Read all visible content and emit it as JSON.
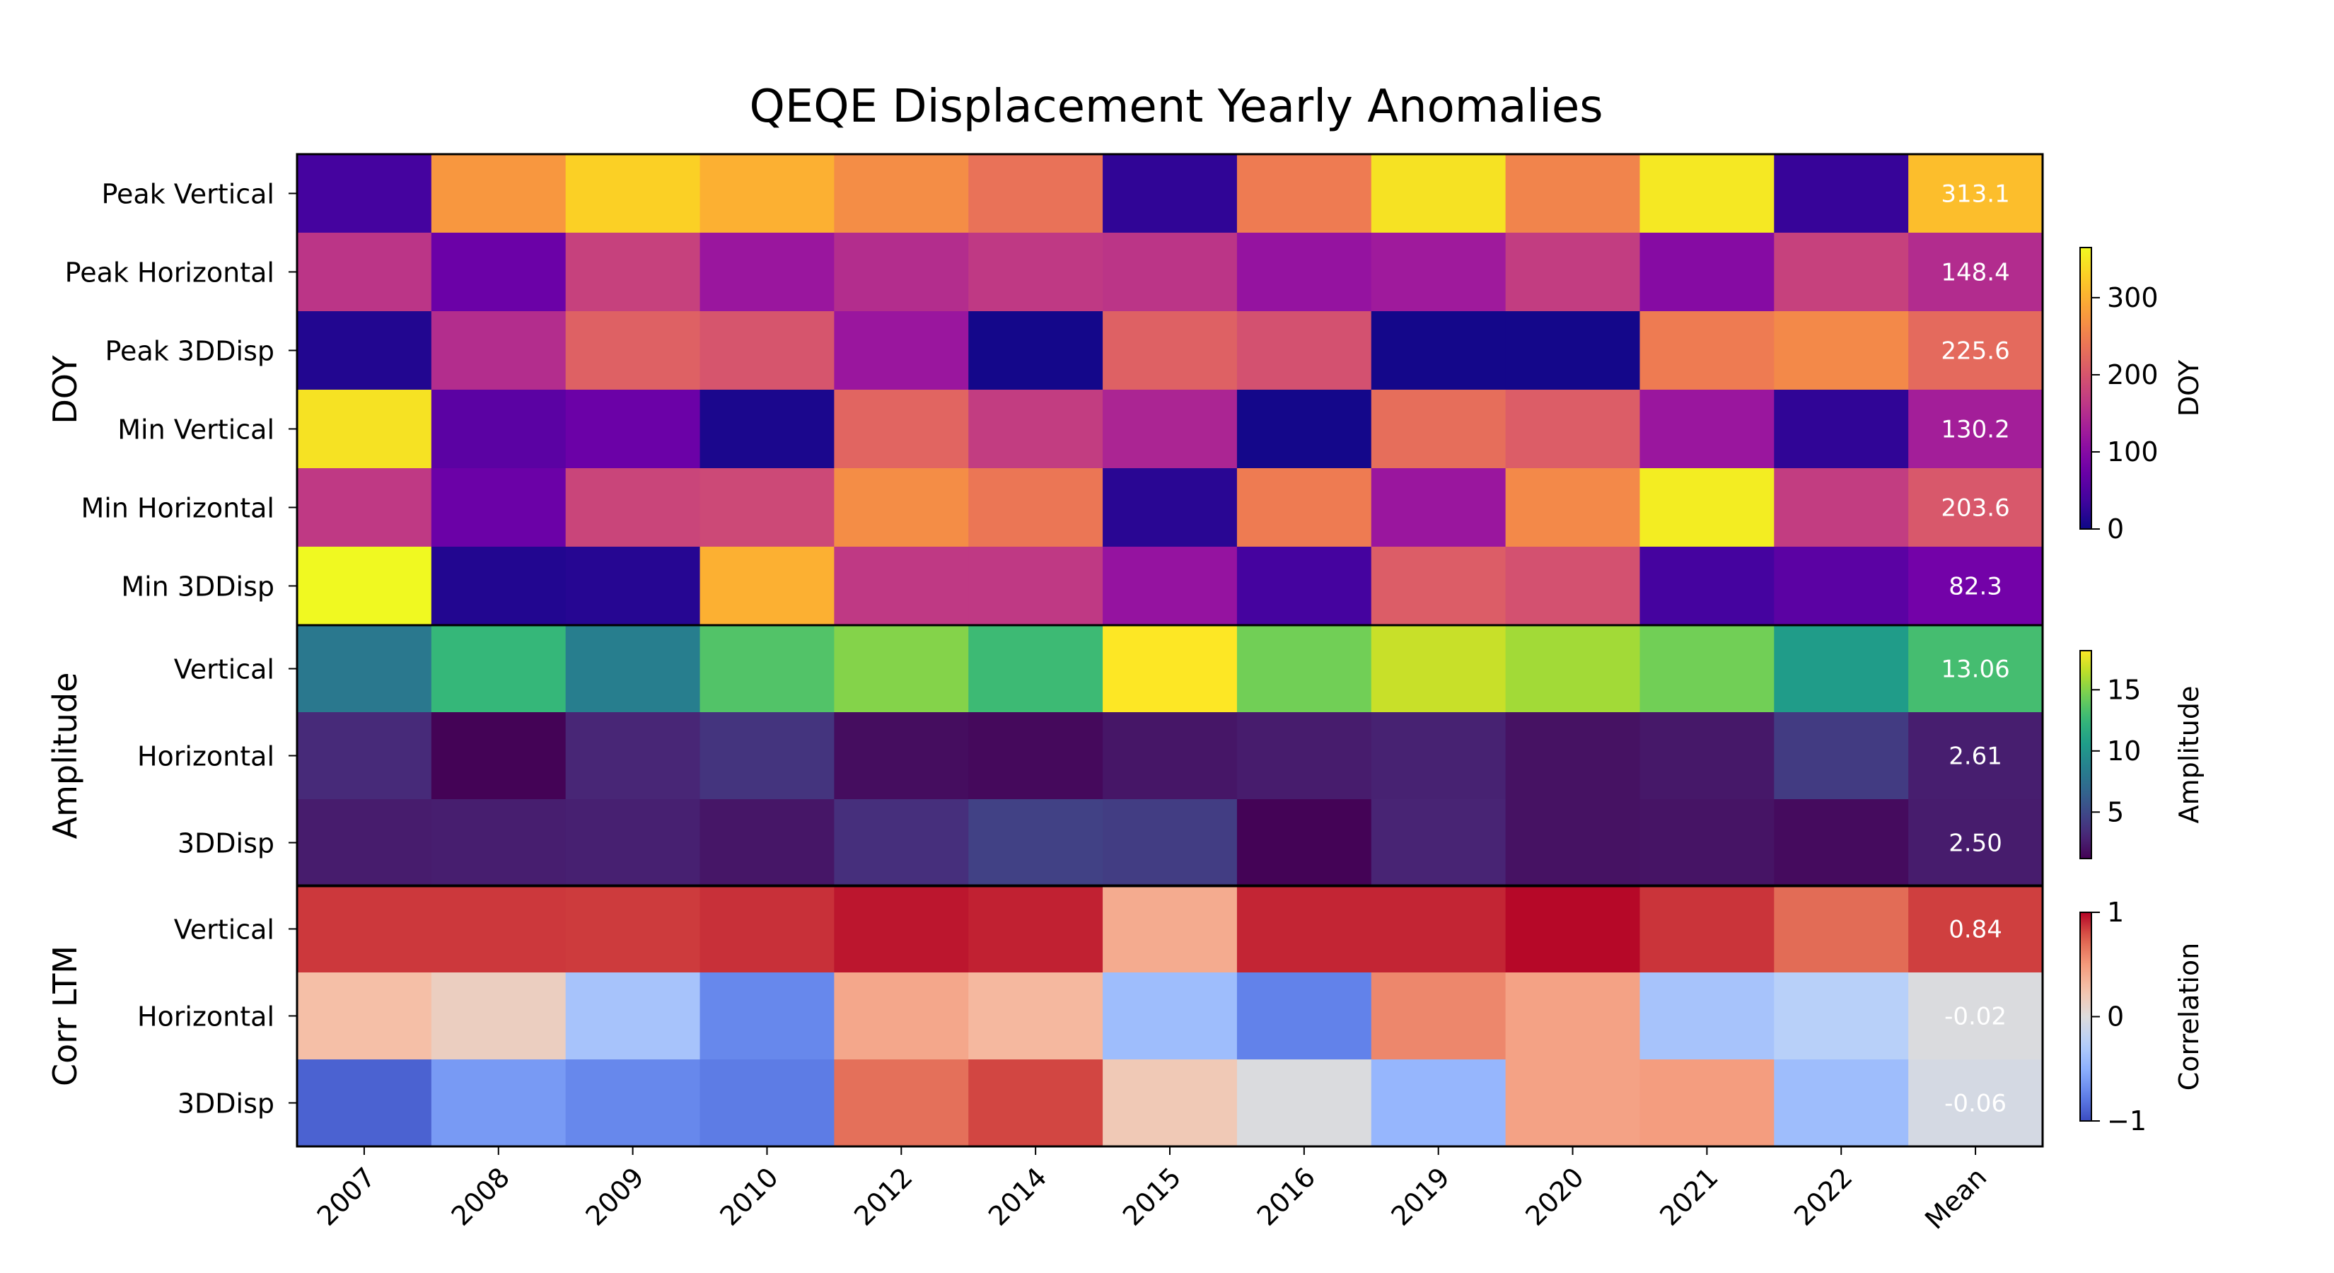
{
  "chart_data": {
    "type": "heatmap",
    "title": "QEQE Displacement Yearly Anomalies",
    "columns": [
      "2007",
      "2008",
      "2009",
      "2010",
      "2012",
      "2014",
      "2015",
      "2016",
      "2019",
      "2020",
      "2021",
      "2022",
      "Mean"
    ],
    "grid": false,
    "groups": [
      {
        "id": "doy",
        "ylabel": "DOY",
        "colormap": "plasma",
        "vmin": 0,
        "vmax": 365,
        "colorbar": {
          "label": "DOY",
          "ticks": [
            0,
            100,
            200,
            300
          ],
          "tick_labels": [
            "0",
            "100",
            "200",
            "300"
          ]
        },
        "rows": [
          {
            "label": "Peak Vertical",
            "values": [
              40,
              275,
              330,
              300,
              265,
              235,
              25,
              245,
              345,
              255,
              350,
              30,
              313.1
            ],
            "mean_label": "313.1"
          },
          {
            "label": "Peak Horizontal",
            "values": [
              160,
              75,
              175,
              120,
              150,
              165,
              160,
              115,
              125,
              170,
              100,
              175,
              148.4
            ],
            "mean_label": "148.4"
          },
          {
            "label": "Peak 3DDisp",
            "values": [
              15,
              150,
              215,
              200,
              120,
              5,
              215,
              195,
              5,
              5,
              245,
              260,
              225.6
            ],
            "mean_label": "225.6"
          },
          {
            "label": "Min Vertical",
            "values": [
              345,
              60,
              75,
              10,
              220,
              170,
              140,
              5,
              230,
              210,
              120,
              25,
              130.2
            ],
            "mean_label": "130.2"
          },
          {
            "label": "Min Horizontal",
            "values": [
              165,
              75,
              180,
              185,
              265,
              240,
              20,
              245,
              120,
              260,
              355,
              170,
              203.6
            ],
            "mean_label": "203.6"
          },
          {
            "label": "Min 3DDisp",
            "values": [
              365,
              15,
              18,
              300,
              165,
              165,
              115,
              40,
              210,
              195,
              40,
              60,
              82.3
            ],
            "mean_label": "82.3"
          }
        ]
      },
      {
        "id": "amplitude",
        "ylabel": "Amplitude",
        "colormap": "viridis",
        "vmin": 1.2,
        "vmax": 18.2,
        "colorbar": {
          "label": "Amplitude",
          "ticks": [
            5,
            10,
            15
          ],
          "tick_labels": [
            "5",
            "10",
            "15"
          ]
        },
        "rows": [
          {
            "label": "Vertical",
            "values": [
              8.0,
              12.5,
              8.5,
              13.5,
              15.0,
              12.8,
              18.2,
              14.5,
              16.8,
              15.8,
              14.5,
              10.5,
              13.06
            ],
            "mean_label": "13.06"
          },
          {
            "label": "Horizontal",
            "values": [
              3.2,
              1.3,
              3.0,
              3.8,
              1.8,
              1.6,
              2.2,
              2.5,
              2.8,
              2.0,
              2.3,
              4.2,
              2.61
            ],
            "mean_label": "2.61"
          },
          {
            "label": "3DDisp",
            "values": [
              2.5,
              2.6,
              2.7,
              2.2,
              3.5,
              4.5,
              4.3,
              1.3,
              2.9,
              2.0,
              2.1,
              1.7,
              2.5
            ],
            "mean_label": "2.50"
          }
        ]
      },
      {
        "id": "corr",
        "ylabel": "Corr LTM",
        "colormap": "coolwarm",
        "vmin": -1,
        "vmax": 1,
        "colorbar": {
          "label": "Correlation",
          "ticks": [
            -1,
            0,
            1
          ],
          "tick_labels": [
            "−1",
            "0",
            "1"
          ]
        },
        "rows": [
          {
            "label": "Vertical",
            "values": [
              0.86,
              0.86,
              0.85,
              0.88,
              0.95,
              0.92,
              0.4,
              0.91,
              0.91,
              0.99,
              0.87,
              0.7,
              0.84
            ],
            "mean_label": "0.84"
          },
          {
            "label": "Horizontal",
            "values": [
              0.28,
              0.15,
              -0.35,
              -0.72,
              0.42,
              0.32,
              -0.4,
              -0.75,
              0.58,
              0.45,
              -0.35,
              -0.25,
              -0.02
            ],
            "mean_label": "-0.02"
          },
          {
            "label": "3DDisp",
            "values": [
              -0.9,
              -0.62,
              -0.72,
              -0.78,
              0.68,
              0.82,
              0.2,
              -0.02,
              -0.45,
              0.45,
              0.48,
              -0.4,
              -0.06
            ],
            "mean_label": "-0.06"
          }
        ]
      }
    ]
  }
}
